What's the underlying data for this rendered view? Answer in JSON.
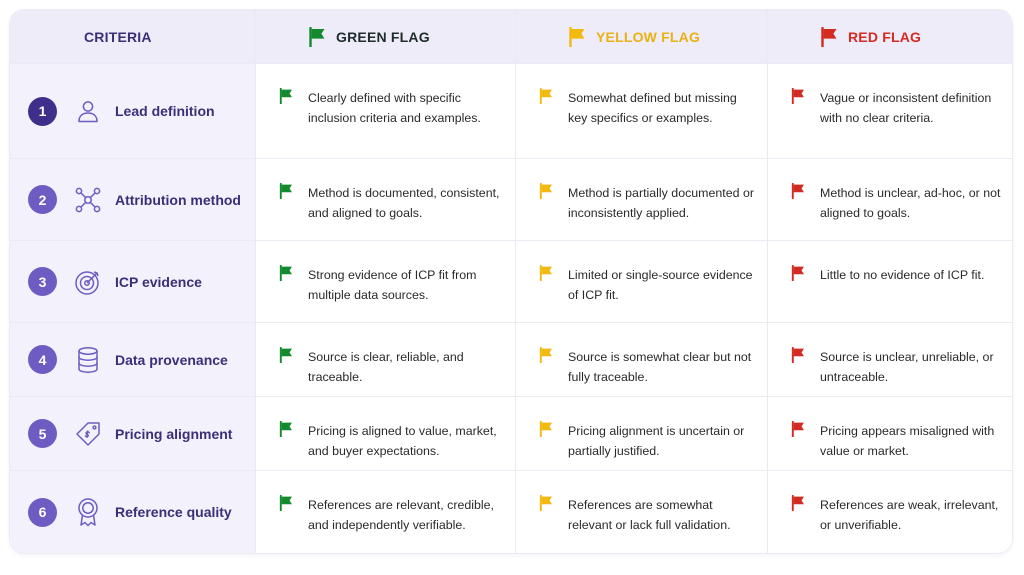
{
  "header": {
    "criteria": "CRITERIA",
    "green": "GREEN FLAG",
    "yellow": "YELLOW FLAG",
    "red": "RED FLAG"
  },
  "colors": {
    "green": "#138a2e",
    "yellow": "#f2b90f",
    "red": "#d32a22",
    "primary": "#3b2f78"
  },
  "rows": [
    {
      "num": "1",
      "icon": "user-icon",
      "label": "Lead definition",
      "green": "Clearly defined with specific inclusion criteria and examples.",
      "yellow": "Somewhat defined but missing key specifics or examples.",
      "red": "Vague or inconsistent definition with no clear criteria."
    },
    {
      "num": "2",
      "icon": "network-icon",
      "label": "Attribution method",
      "green": "Method is documented, consistent, and aligned to goals.",
      "yellow": "Method is partially documented or inconsistently applied.",
      "red": "Method is unclear, ad-hoc, or not aligned to goals."
    },
    {
      "num": "3",
      "icon": "target-icon",
      "label": "ICP evidence",
      "green": "Strong evidence of ICP fit from multiple data sources.",
      "yellow": "Limited or single-source evidence of ICP fit.",
      "red": "Little to no evidence of ICP fit."
    },
    {
      "num": "4",
      "icon": "database-icon",
      "label": "Data provenance",
      "green": "Source is clear, reliable, and traceable.",
      "yellow": "Source is somewhat clear but not fully traceable.",
      "red": "Source is unclear, unreliable, or untraceable."
    },
    {
      "num": "5",
      "icon": "price-tag-icon",
      "label": "Pricing alignment",
      "green": "Pricing is aligned to value, market, and buyer expectations.",
      "yellow": "Pricing alignment is uncertain or partially justified.",
      "red": "Pricing appears misaligned with value or market."
    },
    {
      "num": "6",
      "icon": "award-ribbon-icon",
      "label": "Reference quality",
      "green": "References are relevant, credible, and independently verifiable.",
      "yellow": "References are somewhat relevant or lack full validation.",
      "red": "References are weak, irrelevant, or unverifiable."
    }
  ]
}
